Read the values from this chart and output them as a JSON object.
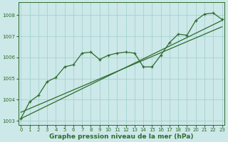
{
  "xlabel": "Graphe pression niveau de la mer (hPa)",
  "background_color": "#cce8e8",
  "grid_color": "#9ecece",
  "line_color": "#2d6b2d",
  "x_data": [
    0,
    1,
    2,
    3,
    4,
    5,
    6,
    7,
    8,
    9,
    10,
    11,
    12,
    13,
    14,
    15,
    16,
    17,
    18,
    19,
    20,
    21,
    22,
    23
  ],
  "y_data": [
    1003.1,
    1003.9,
    1004.2,
    1004.85,
    1005.05,
    1005.55,
    1005.65,
    1006.2,
    1006.25,
    1005.9,
    1006.1,
    1006.2,
    1006.25,
    1006.2,
    1005.55,
    1005.55,
    1006.1,
    1006.7,
    1007.1,
    1007.05,
    1007.75,
    1008.05,
    1008.1,
    1007.8
  ],
  "trend1_x": [
    0,
    23
  ],
  "trend1_y": [
    1003.1,
    1007.75
  ],
  "trend2_x": [
    0,
    23
  ],
  "trend2_y": [
    1003.4,
    1007.45
  ],
  "ylim_min": 1002.8,
  "ylim_max": 1008.6,
  "xlim_min": -0.3,
  "xlim_max": 23.3,
  "yticks": [
    1003,
    1004,
    1005,
    1006,
    1007,
    1008
  ],
  "xticks": [
    0,
    1,
    2,
    3,
    4,
    5,
    6,
    7,
    8,
    9,
    10,
    11,
    12,
    13,
    14,
    15,
    16,
    17,
    18,
    19,
    20,
    21,
    22,
    23
  ],
  "tick_label_fontsize": 5.0,
  "xlabel_fontsize": 6.5,
  "marker_size": 3.0,
  "line_width": 0.9
}
